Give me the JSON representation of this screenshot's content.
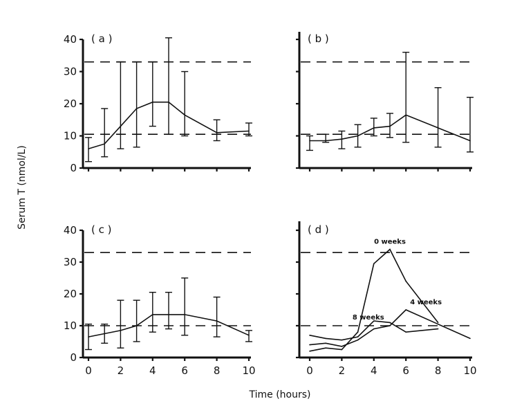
{
  "figure": {
    "xlabel": "Time (hours)",
    "ylabel": "Serum T (nmol/L)"
  },
  "chart_data": [
    {
      "panel": "a",
      "label": "( a )",
      "type": "line",
      "xlim": [
        0,
        10
      ],
      "ylim": [
        0,
        40
      ],
      "xticks": [
        "0",
        "2",
        "4",
        "6",
        "8",
        "10"
      ],
      "yticks": [
        "0",
        "10",
        "20",
        "30",
        "40"
      ],
      "show_xticklabels": false,
      "show_yticklabels": true,
      "reference_lines": [
        33,
        10.5
      ],
      "series": [
        {
          "name": "mean",
          "x": [
            0,
            1,
            2,
            3,
            4,
            5,
            6,
            8,
            10
          ],
          "y": [
            6,
            7.5,
            13,
            18.5,
            20.5,
            20.5,
            16.5,
            11,
            11.5
          ],
          "err_low": [
            2,
            3.5,
            6,
            6.5,
            13,
            10.5,
            10,
            8.5,
            10
          ],
          "err_high": [
            9.5,
            18.5,
            33,
            33,
            33,
            40.5,
            30,
            15,
            14
          ]
        }
      ]
    },
    {
      "panel": "b",
      "label": "( b )",
      "type": "line",
      "xlim": [
        0,
        10
      ],
      "ylim": [
        0,
        40
      ],
      "xticks": [
        "0",
        "2",
        "4",
        "6",
        "8",
        "10"
      ],
      "yticks": [
        "0",
        "10",
        "20",
        "30",
        "40"
      ],
      "show_xticklabels": false,
      "show_yticklabels": false,
      "reference_lines": [
        33,
        10.5
      ],
      "series": [
        {
          "name": "mean",
          "x": [
            0,
            1,
            2,
            3,
            4,
            5,
            6,
            8,
            10
          ],
          "y": [
            8.5,
            8.5,
            9,
            10,
            12.5,
            13,
            16.5,
            12.5,
            8.5
          ],
          "err_low": [
            5.5,
            8,
            6,
            6.5,
            10,
            9.5,
            8,
            6.5,
            5
          ],
          "err_high": [
            10,
            10.5,
            11.5,
            13.5,
            15.5,
            17,
            36,
            25,
            22
          ]
        }
      ]
    },
    {
      "panel": "c",
      "label": "( c )",
      "type": "line",
      "xlim": [
        0,
        10
      ],
      "ylim": [
        0,
        40
      ],
      "xticks": [
        "0",
        "2",
        "4",
        "6",
        "8",
        "10"
      ],
      "yticks": [
        "0",
        "10",
        "20",
        "30",
        "40"
      ],
      "show_xticklabels": true,
      "show_yticklabels": true,
      "reference_lines": [
        33,
        10
      ],
      "series": [
        {
          "name": "mean",
          "x": [
            0,
            1,
            2,
            3,
            4,
            5,
            6,
            8,
            10
          ],
          "y": [
            6.5,
            7.5,
            8.5,
            10,
            13.5,
            13.5,
            13.5,
            11.5,
            7
          ],
          "err_low": [
            2.5,
            4.5,
            3,
            5,
            8,
            9,
            7,
            6.5,
            5
          ],
          "err_high": [
            10.5,
            10.5,
            18,
            18,
            20.5,
            20.5,
            25,
            19,
            8.5
          ]
        }
      ]
    },
    {
      "panel": "d",
      "label": "( d )",
      "type": "line",
      "xlim": [
        0,
        10
      ],
      "ylim": [
        0,
        40
      ],
      "xticks": [
        "0",
        "2",
        "4",
        "6",
        "8",
        "10"
      ],
      "yticks": [
        "0",
        "10",
        "20",
        "30",
        "40"
      ],
      "show_xticklabels": true,
      "show_yticklabels": false,
      "reference_lines": [
        33,
        10
      ],
      "annotations": [
        "0 weeks",
        "4 weeks",
        "8 weeks"
      ],
      "series": [
        {
          "name": "0 weeks",
          "x": [
            0,
            1,
            2,
            3,
            4,
            5,
            6,
            8
          ],
          "y": [
            2,
            3,
            2.5,
            8,
            29.5,
            34,
            24,
            11
          ]
        },
        {
          "name": "4 weeks",
          "x": [
            0,
            1,
            2,
            3,
            4,
            5,
            6,
            8,
            10
          ],
          "y": [
            4,
            4.5,
            3.5,
            5.5,
            9,
            10,
            15,
            10.5,
            6
          ]
        },
        {
          "name": "8 weeks",
          "x": [
            0,
            1,
            2,
            3,
            4,
            5,
            6,
            8
          ],
          "y": [
            7,
            6,
            5.5,
            6.5,
            11.5,
            11,
            8,
            9
          ]
        }
      ]
    }
  ]
}
